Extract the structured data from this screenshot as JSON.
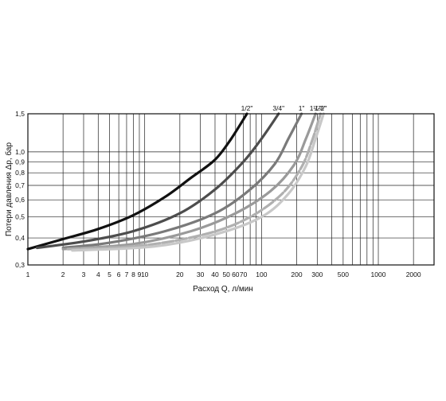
{
  "chart_data": {
    "type": "line",
    "xscale": "log",
    "yscale": "log",
    "xlim": [
      1,
      3000
    ],
    "ylim": [
      0.3,
      1.5
    ],
    "grid": true,
    "xlabel": "Расход Q, л/мин",
    "ylabel": "Потери давления Δp, бар",
    "x_ticks": [
      1,
      2,
      3,
      4,
      5,
      6,
      7,
      8,
      9,
      10,
      20,
      30,
      40,
      50,
      60,
      70,
      100,
      200,
      300,
      500,
      1000,
      2000
    ],
    "x_tick_labels": [
      "1",
      "2",
      "3",
      "4",
      "5",
      "6",
      "7",
      "8",
      "9",
      "10",
      "20",
      "30",
      "40",
      "50",
      "60",
      "70",
      "100",
      "200",
      "300",
      "500",
      "1000",
      "2000"
    ],
    "x_minor_grid": [
      80,
      90,
      400,
      600,
      700,
      800,
      900
    ],
    "y_ticks": [
      0.3,
      0.4,
      0.5,
      0.6,
      0.7,
      0.8,
      0.9,
      1.0,
      1.5
    ],
    "y_tick_labels": [
      "0,3",
      "0,4",
      "0,5",
      "0,6",
      "0,7",
      "0,8",
      "0,9",
      "1,0",
      "1,5"
    ],
    "series": [
      {
        "name": "1/2\"",
        "color": "#111111",
        "dash": false,
        "points": [
          [
            1,
            0.355
          ],
          [
            2,
            0.395
          ],
          [
            4,
            0.44
          ],
          [
            8,
            0.51
          ],
          [
            15,
            0.62
          ],
          [
            25,
            0.76
          ],
          [
            40,
            0.92
          ],
          [
            55,
            1.15
          ],
          [
            75,
            1.5
          ]
        ]
      },
      {
        "name": "3/4\"",
        "color": "#4d4d4d",
        "dash": false,
        "points": [
          [
            1.2,
            0.36
          ],
          [
            3,
            0.385
          ],
          [
            8,
            0.43
          ],
          [
            20,
            0.52
          ],
          [
            40,
            0.67
          ],
          [
            70,
            0.9
          ],
          [
            100,
            1.15
          ],
          [
            140,
            1.5
          ]
        ]
      },
      {
        "name": "1\"",
        "color": "#7a7a7a",
        "dash": false,
        "points": [
          [
            2,
            0.36
          ],
          [
            5,
            0.38
          ],
          [
            15,
            0.43
          ],
          [
            40,
            0.52
          ],
          [
            80,
            0.67
          ],
          [
            130,
            0.88
          ],
          [
            170,
            1.15
          ],
          [
            220,
            1.5
          ]
        ]
      },
      {
        "name": "1¼\"",
        "color": "#9a9a9a",
        "dash": false,
        "points": [
          [
            2,
            0.355
          ],
          [
            8,
            0.375
          ],
          [
            25,
            0.43
          ],
          [
            60,
            0.52
          ],
          [
            120,
            0.66
          ],
          [
            190,
            0.87
          ],
          [
            240,
            1.15
          ],
          [
            290,
            1.5
          ]
        ]
      },
      {
        "name": "1½\"",
        "color": "#b0b0b0",
        "dash": true,
        "points": [
          [
            2.2,
            0.355
          ],
          [
            10,
            0.37
          ],
          [
            35,
            0.42
          ],
          [
            80,
            0.5
          ],
          [
            150,
            0.64
          ],
          [
            220,
            0.85
          ],
          [
            270,
            1.12
          ],
          [
            320,
            1.5
          ]
        ]
      },
      {
        "name": "2\"",
        "color": "#c8c8c8",
        "dash": false,
        "points": [
          [
            2.4,
            0.35
          ],
          [
            12,
            0.365
          ],
          [
            40,
            0.415
          ],
          [
            100,
            0.5
          ],
          [
            170,
            0.64
          ],
          [
            240,
            0.86
          ],
          [
            290,
            1.15
          ],
          [
            340,
            1.5
          ]
        ]
      }
    ]
  }
}
